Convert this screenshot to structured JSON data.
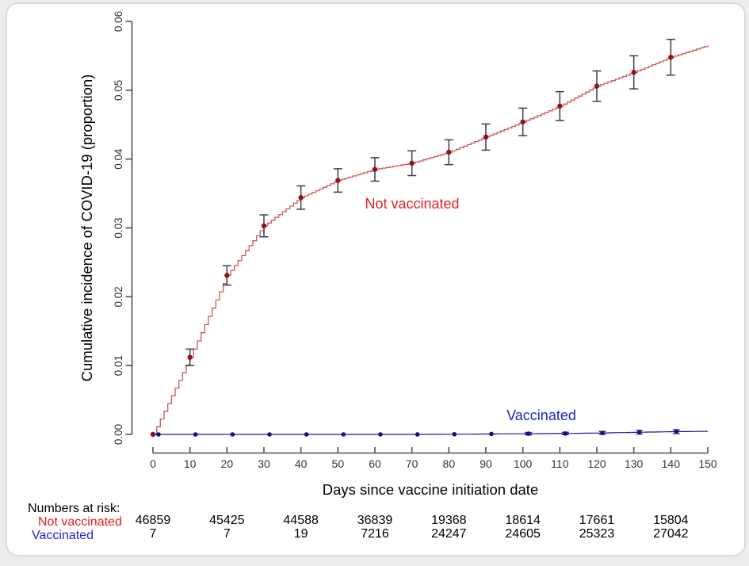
{
  "chart_data": {
    "type": "line",
    "subtype": "cumulative-incidence-step-curves",
    "title": "",
    "xlabel": "Days since vaccine initiation date",
    "ylabel": "Cumulative incidence of COVID-19 (proportion)",
    "xlim": [
      0,
      150
    ],
    "ylim": [
      0,
      0.06
    ],
    "grid": false,
    "legend_position": "inline-curve-labels",
    "x_ticks": [
      "0",
      "10",
      "20",
      "30",
      "40",
      "50",
      "60",
      "70",
      "80",
      "90",
      "100",
      "110",
      "120",
      "130",
      "140",
      "150"
    ],
    "y_ticks": [
      "0.00",
      "0.01",
      "0.02",
      "0.03",
      "0.04",
      "0.05",
      "0.06"
    ],
    "series": [
      {
        "name": "Not vaccinated",
        "style": "step",
        "line_color": "#cd5757",
        "marker_color": "#8f1414",
        "errorbar_color": "#3f3f3f",
        "label_color": "#e01f1f",
        "label_day": 70,
        "label_value": 0.0334,
        "x": [
          0,
          10,
          20,
          30,
          40,
          50,
          60,
          70,
          80,
          90,
          100,
          110,
          120,
          130,
          140,
          150
        ],
        "y": [
          0.0,
          0.0112,
          0.0231,
          0.0303,
          0.0344,
          0.0369,
          0.0385,
          0.0394,
          0.041,
          0.0432,
          0.0454,
          0.0477,
          0.0506,
          0.0526,
          0.0548,
          0.0565
        ],
        "marker_days": [
          0,
          10,
          20,
          30,
          40,
          50,
          60,
          70,
          80,
          90,
          100,
          110,
          120,
          130,
          140
        ],
        "ci_half": [
          0,
          0.0012,
          0.0014,
          0.0016,
          0.0017,
          0.0017,
          0.0017,
          0.0018,
          0.0018,
          0.0019,
          0.002,
          0.0021,
          0.0022,
          0.0024,
          0.0026
        ]
      },
      {
        "name": "Vaccinated",
        "style": "step",
        "line_color": "#1c1c99",
        "marker_color": "#101078",
        "errorbar_color": "#1c1c99",
        "label_color": "#2424cc",
        "label_day": 105,
        "label_value": 0.0028,
        "x": [
          0,
          10,
          20,
          30,
          40,
          50,
          60,
          70,
          80,
          90,
          100,
          110,
          120,
          130,
          140,
          150
        ],
        "y": [
          0,
          0,
          0,
          0,
          0,
          0,
          0,
          0,
          2e-05,
          6e-05,
          0.0001,
          0.00013,
          0.0002,
          0.0003,
          0.0004,
          0.00045
        ],
        "marker_days": [
          1.5,
          11.5,
          21.5,
          31.5,
          41.5,
          51.5,
          61.5,
          71.5,
          81.5,
          91.5,
          101.5,
          111.5,
          121.5,
          131.5,
          141.5
        ],
        "ci_half": [
          0,
          0,
          0,
          0,
          0,
          0,
          0,
          0,
          0,
          0,
          0.00018,
          0.00018,
          0.00022,
          0.00028,
          0.00028
        ]
      }
    ]
  },
  "risk_table": {
    "title": "Numbers at risk:",
    "columns_days": [
      0,
      20,
      40,
      60,
      80,
      100,
      120,
      140
    ],
    "rows": [
      {
        "label": "Not vaccinated",
        "color": "#e01f1f",
        "values": [
          "46859",
          "45425",
          "44588",
          "36839",
          "19368",
          "18614",
          "17661",
          "15804"
        ]
      },
      {
        "label": "Vaccinated",
        "color": "#2424cc",
        "values": [
          "7",
          "7",
          "19",
          "7216",
          "24247",
          "24605",
          "25323",
          "27042"
        ]
      }
    ]
  }
}
